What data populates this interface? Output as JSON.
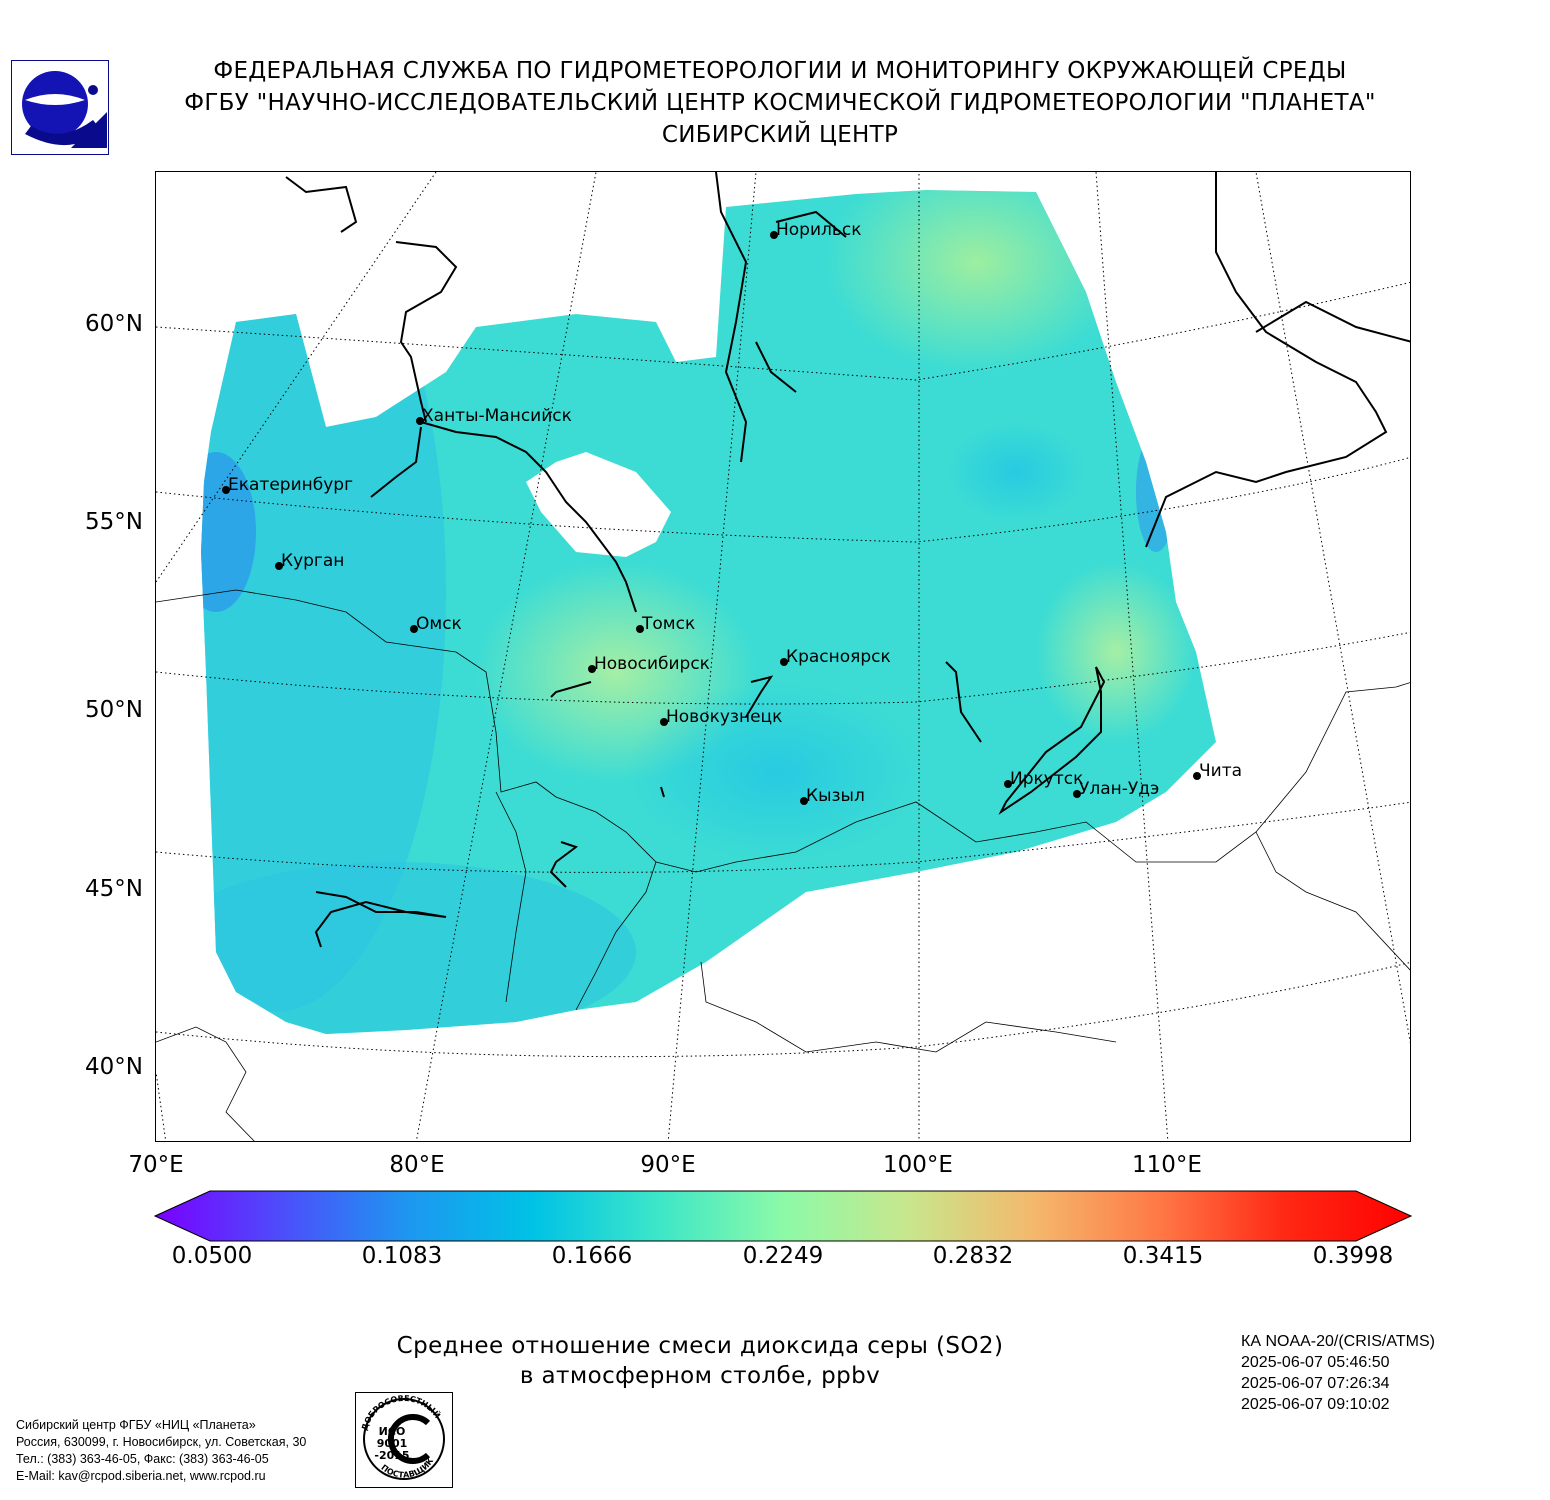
{
  "header": {
    "line1": "ФЕДЕРАЛЬНАЯ СЛУЖБА ПО ГИДРОМЕТЕОРОЛОГИИ И МОНИТОРИНГУ ОКРУЖАЮЩЕЙ СРЕДЫ",
    "line2": "ФГБУ \"НАУЧНО-ИССЛЕДОВАТЕЛЬСКИЙ ЦЕНТР КОСМИЧЕСКОЙ ГИДРОМЕТЕОРОЛОГИИ \"ПЛАНЕТА\"",
    "line3": "СИБИРСКИЙ ЦЕНТР"
  },
  "map": {
    "lat_labels": [
      "60°N",
      "55°N",
      "50°N",
      "45°N",
      "40°N"
    ],
    "lon_labels": [
      "70°E",
      "80°E",
      "90°E",
      "100°E",
      "110°E"
    ],
    "cities": [
      "Норильск",
      "Ханты-Мансийск",
      "Екатеринбург",
      "Курган",
      "Омск",
      "Томск",
      "Новосибирск",
      "Красноярск",
      "Новокузнецк",
      "Иркутск",
      "Улан-Удэ",
      "Чита",
      "Кызыл"
    ]
  },
  "colorbar": {
    "ticks": [
      "0.0500",
      "0.1083",
      "0.1666",
      "0.2249",
      "0.2832",
      "0.3415",
      "0.3998"
    ],
    "colors": [
      "#7a00ff",
      "#4d4dfb",
      "#1e96f0",
      "#00c2e6",
      "#3ce6c8",
      "#8cfaa8",
      "#c8e68c",
      "#f4b86c",
      "#ff7846",
      "#ff2814",
      "#ff0000"
    ]
  },
  "title": {
    "line1": "Среднее отношение смеси диоксида серы (SO2)",
    "line2": "в атмосферном столбе, ppbv"
  },
  "satellite": {
    "name": "КА NOAA-20/(CRIS/ATMS)",
    "times": [
      "2025-06-07 05:46:50",
      "2025-06-07 07:26:34",
      "2025-06-07 09:10:02"
    ]
  },
  "footer": {
    "org": "Сибирский центр ФГБУ «НИЦ «Планета»",
    "address": "Россия, 630099, г. Новосибирск, ул. Советская, 30",
    "phone": "Тел.: (383) 363-46-05, Факс: (383) 363-46-05",
    "email": "E-Mail: kav@rcpod.siberia.net, www.rcpod.ru"
  },
  "iso_badge": {
    "top_text": "ДОБРОСОВЕСТНЫЙ",
    "bottom_text": "ПОСТАВЩИК",
    "lines": [
      "ИСО",
      "9001",
      "-2015"
    ]
  }
}
